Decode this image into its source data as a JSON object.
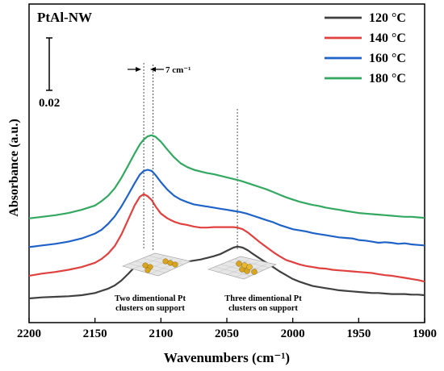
{
  "chart_data": {
    "type": "line",
    "title": "PtAl-NW",
    "xlabel": "Wavenumbers (cm⁻¹)",
    "ylabel": "Absorbance (a.u.)",
    "xlim": [
      2200,
      1900
    ],
    "x_reversed": true,
    "x_ticks": [
      "2200",
      "2150",
      "2100",
      "2050",
      "2000",
      "1950",
      "1900"
    ],
    "grid": false,
    "legend_position": "top-right",
    "scale_bar": {
      "label": "0.02",
      "value": 0.02
    },
    "annotations": {
      "shift_label": "7 cm⁻¹",
      "left_cluster_label": [
        "Two dimentional Pt",
        "clusters on support"
      ],
      "right_cluster_label": [
        "Three dimentional Pt",
        "clusters on support"
      ]
    },
    "ref_lines_x": [
      2113,
      2106,
      2042
    ],
    "series": [
      {
        "name": "120 °C",
        "color": "#404040",
        "x": [
          2200,
          2190,
          2180,
          2170,
          2160,
          2150,
          2140,
          2135,
          2130,
          2125,
          2120,
          2116,
          2113,
          2110,
          2107,
          2104,
          2100,
          2095,
          2090,
          2085,
          2080,
          2075,
          2070,
          2065,
          2060,
          2055,
          2050,
          2045,
          2042,
          2038,
          2034,
          2030,
          2025,
          2020,
          2015,
          2010,
          2005,
          2000,
          1995,
          1990,
          1985,
          1980,
          1975,
          1970,
          1965,
          1960,
          1955,
          1950,
          1945,
          1940,
          1935,
          1930,
          1925,
          1920,
          1915,
          1910,
          1905,
          1900
        ],
        "y": [
          0.0,
          0.002,
          0.003,
          0.004,
          0.006,
          0.01,
          0.018,
          0.024,
          0.033,
          0.045,
          0.058,
          0.068,
          0.071,
          0.07,
          0.067,
          0.064,
          0.067,
          0.066,
          0.067,
          0.067,
          0.068,
          0.07,
          0.072,
          0.075,
          0.078,
          0.082,
          0.088,
          0.094,
          0.096,
          0.094,
          0.089,
          0.082,
          0.074,
          0.066,
          0.058,
          0.05,
          0.043,
          0.036,
          0.031,
          0.027,
          0.023,
          0.021,
          0.019,
          0.017,
          0.015,
          0.014,
          0.013,
          0.012,
          0.011,
          0.01,
          0.01,
          0.009,
          0.008,
          0.008,
          0.008,
          0.007,
          0.007,
          0.006
        ]
      },
      {
        "name": "140 °C",
        "color": "#e0413f",
        "x": [
          2200,
          2190,
          2180,
          2170,
          2160,
          2150,
          2145,
          2140,
          2135,
          2130,
          2125,
          2120,
          2116,
          2113,
          2110,
          2107,
          2104,
          2100,
          2095,
          2090,
          2085,
          2080,
          2075,
          2070,
          2065,
          2060,
          2055,
          2050,
          2045,
          2042,
          2038,
          2034,
          2030,
          2025,
          2020,
          2015,
          2010,
          2005,
          2000,
          1995,
          1990,
          1985,
          1980,
          1975,
          1970,
          1965,
          1960,
          1955,
          1950,
          1945,
          1940,
          1935,
          1930,
          1925,
          1920,
          1915,
          1910,
          1905,
          1900
        ],
        "y": [
          0.042,
          0.046,
          0.049,
          0.053,
          0.058,
          0.066,
          0.073,
          0.083,
          0.097,
          0.118,
          0.145,
          0.172,
          0.188,
          0.193,
          0.189,
          0.182,
          0.17,
          0.157,
          0.148,
          0.142,
          0.138,
          0.136,
          0.133,
          0.131,
          0.131,
          0.132,
          0.132,
          0.132,
          0.132,
          0.131,
          0.128,
          0.122,
          0.114,
          0.104,
          0.095,
          0.086,
          0.078,
          0.071,
          0.067,
          0.063,
          0.06,
          0.058,
          0.056,
          0.055,
          0.053,
          0.052,
          0.051,
          0.05,
          0.049,
          0.048,
          0.047,
          0.045,
          0.043,
          0.042,
          0.04,
          0.038,
          0.036,
          0.034,
          0.031
        ]
      },
      {
        "name": "160 °C",
        "color": "#1f63c9",
        "x": [
          2200,
          2190,
          2180,
          2170,
          2160,
          2150,
          2145,
          2140,
          2135,
          2130,
          2125,
          2120,
          2116,
          2113,
          2110,
          2107,
          2104,
          2100,
          2095,
          2090,
          2085,
          2080,
          2075,
          2070,
          2065,
          2060,
          2055,
          2050,
          2045,
          2040,
          2035,
          2030,
          2025,
          2020,
          2015,
          2010,
          2005,
          2000,
          1995,
          1990,
          1985,
          1980,
          1975,
          1970,
          1965,
          1960,
          1955,
          1950,
          1945,
          1940,
          1935,
          1930,
          1925,
          1920,
          1915,
          1910,
          1905,
          1900
        ],
        "y": [
          0.095,
          0.098,
          0.101,
          0.105,
          0.111,
          0.12,
          0.127,
          0.138,
          0.152,
          0.17,
          0.191,
          0.213,
          0.229,
          0.236,
          0.238,
          0.236,
          0.228,
          0.215,
          0.201,
          0.19,
          0.183,
          0.178,
          0.174,
          0.172,
          0.17,
          0.168,
          0.166,
          0.164,
          0.162,
          0.16,
          0.157,
          0.153,
          0.149,
          0.145,
          0.141,
          0.136,
          0.132,
          0.128,
          0.126,
          0.124,
          0.121,
          0.119,
          0.117,
          0.115,
          0.113,
          0.112,
          0.111,
          0.108,
          0.107,
          0.105,
          0.103,
          0.104,
          0.103,
          0.101,
          0.102,
          0.1,
          0.099,
          0.098
        ]
      },
      {
        "name": "180 °C",
        "color": "#33a860",
        "x": [
          2200,
          2190,
          2180,
          2170,
          2160,
          2150,
          2145,
          2140,
          2135,
          2130,
          2125,
          2120,
          2116,
          2113,
          2110,
          2107,
          2104,
          2100,
          2095,
          2090,
          2085,
          2080,
          2075,
          2070,
          2065,
          2060,
          2055,
          2050,
          2045,
          2040,
          2035,
          2030,
          2025,
          2020,
          2015,
          2010,
          2005,
          2000,
          1995,
          1990,
          1985,
          1980,
          1975,
          1970,
          1965,
          1960,
          1955,
          1950,
          1945,
          1940,
          1935,
          1930,
          1925,
          1920,
          1915,
          1910,
          1905,
          1900
        ],
        "y": [
          0.148,
          0.151,
          0.154,
          0.158,
          0.164,
          0.172,
          0.18,
          0.19,
          0.204,
          0.223,
          0.245,
          0.268,
          0.285,
          0.294,
          0.3,
          0.302,
          0.299,
          0.29,
          0.275,
          0.261,
          0.25,
          0.243,
          0.238,
          0.235,
          0.232,
          0.23,
          0.227,
          0.224,
          0.221,
          0.218,
          0.214,
          0.21,
          0.206,
          0.202,
          0.197,
          0.192,
          0.187,
          0.183,
          0.179,
          0.176,
          0.173,
          0.171,
          0.168,
          0.166,
          0.164,
          0.162,
          0.16,
          0.158,
          0.157,
          0.156,
          0.155,
          0.154,
          0.153,
          0.152,
          0.151,
          0.151,
          0.15,
          0.149
        ]
      }
    ]
  }
}
